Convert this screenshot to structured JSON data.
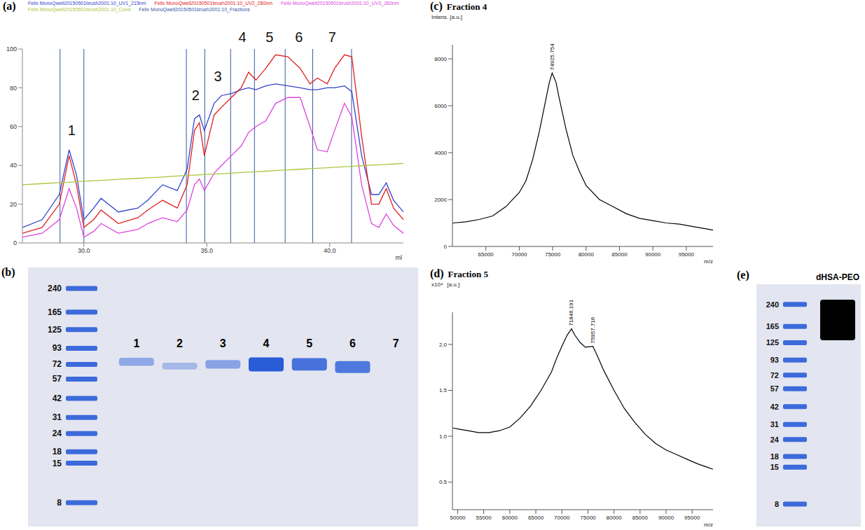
{
  "chart_data": [
    {
      "panel": "(a)",
      "type": "line",
      "legend": "top",
      "x": [
        27.5,
        28.3,
        29.0,
        29.4,
        29.7,
        30.0,
        30.4,
        30.7,
        31.4,
        32.2,
        32.6,
        33.2,
        33.8,
        34.2,
        34.5,
        34.7,
        34.9,
        35.3,
        35.6,
        36.0,
        36.4,
        36.7,
        37.0,
        37.4,
        37.8,
        38.3,
        38.8,
        39.2,
        39.5,
        39.9,
        40.2,
        40.6,
        40.9,
        41.3,
        41.7,
        42.0,
        42.3,
        42.6,
        43.0
      ],
      "series": [
        {
          "name": "Felix MonoQwell20150501brush2001:10_UV1_215nm",
          "color": "#3344cc",
          "values": [
            8,
            12,
            25,
            48,
            35,
            12,
            18,
            23,
            16,
            18,
            22,
            30,
            27,
            38,
            64,
            66,
            58,
            72,
            76,
            77,
            79,
            80,
            79,
            81,
            82,
            81,
            80,
            79,
            79,
            80,
            80,
            81,
            78,
            45,
            25,
            25,
            31,
            22,
            16
          ]
        },
        {
          "name": "Felix MonoQwell20150501brush2001:10_UV2_280nm",
          "color": "#e02020",
          "values": [
            5,
            8,
            20,
            45,
            30,
            8,
            12,
            17,
            10,
            13,
            17,
            22,
            18,
            30,
            58,
            62,
            45,
            66,
            70,
            75,
            80,
            88,
            84,
            90,
            97,
            96,
            90,
            82,
            85,
            82,
            90,
            97,
            96,
            55,
            20,
            20,
            28,
            18,
            12
          ]
        },
        {
          "name": "Felix MonoQwell20150501brush2001:10_UV3_260nm",
          "color": "#dd44dd",
          "values": [
            3,
            5,
            12,
            28,
            18,
            3,
            6,
            10,
            5,
            7,
            10,
            13,
            11,
            17,
            30,
            33,
            27,
            36,
            40,
            45,
            50,
            57,
            60,
            63,
            72,
            75,
            75,
            60,
            48,
            47,
            58,
            72,
            65,
            30,
            10,
            8,
            15,
            9,
            5
          ]
        },
        {
          "name": "Felix MonoQwell20150501brush2001:10_Cond",
          "color": "#a8c83c",
          "values": [
            30,
            30.6,
            31.1,
            31.3,
            31.6,
            31.8,
            32.1,
            32.3,
            32.8,
            33.3,
            33.6,
            34,
            34.5,
            34.8,
            35,
            35.1,
            35.3,
            35.5,
            35.7,
            36,
            36.3,
            36.5,
            36.7,
            37,
            37.3,
            37.7,
            38,
            38.3,
            38.5,
            38.8,
            39,
            39.3,
            39.5,
            39.8,
            40.1,
            40.3,
            40.5,
            40.7,
            41
          ]
        }
      ],
      "fractions": {
        "name": "Felix MonoQwell20150501brush2001:10_Fractions",
        "color": "#3a55a8",
        "x": [
          29.03,
          30.0,
          34.17,
          34.92,
          35.97,
          36.94,
          38.19,
          39.31,
          40.89
        ]
      },
      "annotations": [
        {
          "text": "1",
          "x": 29.5,
          "y": 58
        },
        {
          "text": "2",
          "x": 34.55,
          "y": 76
        },
        {
          "text": "3",
          "x": 35.45,
          "y": 86
        },
        {
          "text": "4",
          "x": 36.45,
          "y": 106
        },
        {
          "text": "5",
          "x": 37.55,
          "y": 106
        },
        {
          "text": "6",
          "x": 38.75,
          "y": 106
        },
        {
          "text": "7",
          "x": 40.1,
          "y": 106
        }
      ],
      "x_label": "ml",
      "xlim": [
        27.5,
        43
      ],
      "xticks": [
        {
          "value": 30,
          "label": "30.0"
        },
        {
          "value": 35,
          "label": "35.0"
        },
        {
          "value": 40,
          "label": "40.0"
        }
      ],
      "ylim": [
        0,
        100
      ],
      "yticks": [
        0,
        20,
        40,
        60,
        80,
        100
      ]
    },
    {
      "panel": "(b)",
      "type": "gel",
      "log": "y",
      "color": "#1f55d6",
      "ylim": [
        6,
        300
      ],
      "yticks": [
        240,
        165,
        125,
        93,
        72,
        57,
        42,
        31,
        24,
        18,
        15,
        8
      ],
      "lanes": [
        {
          "label": "1",
          "band": 75,
          "intensity": 0.3
        },
        {
          "label": "2",
          "band": 70,
          "intensity": 0.15
        },
        {
          "label": "3",
          "band": 72,
          "intensity": 0.35
        },
        {
          "label": "4",
          "band": 72,
          "intensity": 1
        },
        {
          "label": "5",
          "band": 72,
          "intensity": 0.8
        },
        {
          "label": "6",
          "band": 69,
          "intensity": 0.75
        },
        {
          "label": "7",
          "band": null,
          "intensity": null
        }
      ]
    },
    {
      "panel": "(c)",
      "title": "Fraction 4",
      "type": "line",
      "color": "#000000",
      "x": [
        60000,
        62000,
        64000,
        66000,
        68000,
        70000,
        71000,
        72000,
        73000,
        74000,
        74500,
        74925.754,
        75500,
        76000,
        77000,
        78000,
        79000,
        80000,
        82000,
        84000,
        86000,
        88000,
        90000,
        92000,
        94000,
        96000,
        98000,
        99000
      ],
      "values": [
        1000,
        1050,
        1150,
        1300,
        1700,
        2300,
        2800,
        3700,
        4900,
        6300,
        7000,
        7400,
        7000,
        6300,
        5000,
        3900,
        3200,
        2600,
        2000,
        1700,
        1400,
        1200,
        1100,
        1000,
        950,
        850,
        750,
        700
      ],
      "annotations": [
        {
          "text": "74925.754",
          "x": 74925.754,
          "y": 7400
        }
      ],
      "y_label": "Intens. [a.u.]",
      "x_label": "m/z",
      "xlim": [
        60000,
        99000
      ],
      "xticks": [
        65000,
        70000,
        75000,
        80000,
        85000,
        90000,
        95000
      ],
      "ylim": [
        0,
        8600
      ],
      "yticks": [
        0,
        2000,
        4000,
        6000,
        8000
      ]
    },
    {
      "panel": "(d)",
      "title": "Fraction 5",
      "type": "line",
      "color": "#000000",
      "x": [
        49000,
        50000,
        52000,
        54000,
        56000,
        58000,
        60000,
        62000,
        64000,
        66000,
        68000,
        69000,
        70000,
        71000,
        71846.191,
        72500,
        73500,
        74500,
        75957.716,
        77000,
        78000,
        80000,
        82000,
        84000,
        86000,
        88000,
        90000,
        92000,
        94000,
        96000,
        98000,
        99000
      ],
      "values": [
        1.09,
        1.08,
        1.06,
        1.04,
        1.04,
        1.06,
        1.1,
        1.2,
        1.33,
        1.5,
        1.7,
        1.85,
        1.98,
        2.1,
        2.17,
        2.1,
        2.02,
        1.97,
        1.98,
        1.85,
        1.72,
        1.5,
        1.3,
        1.15,
        1.02,
        0.92,
        0.85,
        0.8,
        0.75,
        0.7,
        0.66,
        0.64
      ],
      "annotations": [
        {
          "text": "71846.191",
          "x": 71846.191,
          "y": 2.17
        },
        {
          "text": "75957.716",
          "x": 75957.716,
          "y": 1.98
        }
      ],
      "y_label": "[a.u.]",
      "y_scale_label": "x10⁴",
      "x_label": "m/z",
      "xlim": [
        49000,
        99000
      ],
      "xticks": [
        50000,
        55000,
        60000,
        65000,
        70000,
        75000,
        80000,
        85000,
        90000,
        95000
      ],
      "ylim": [
        0.2,
        2.35
      ],
      "yticks": [
        0.5,
        {
          "value": 1,
          "label": "1.0"
        },
        1.5,
        {
          "value": 2,
          "label": "2.0"
        }
      ]
    },
    {
      "panel": "(e)",
      "type": "gel",
      "log": "y",
      "color": "#1f55d6",
      "ylim": [
        6,
        300
      ],
      "yticks": [
        240,
        165,
        125,
        93,
        72,
        57,
        42,
        31,
        24,
        18,
        15,
        8
      ],
      "lanes": [
        {
          "label": "dHSA-PEO",
          "smear": [
            130,
            260
          ]
        }
      ]
    }
  ]
}
